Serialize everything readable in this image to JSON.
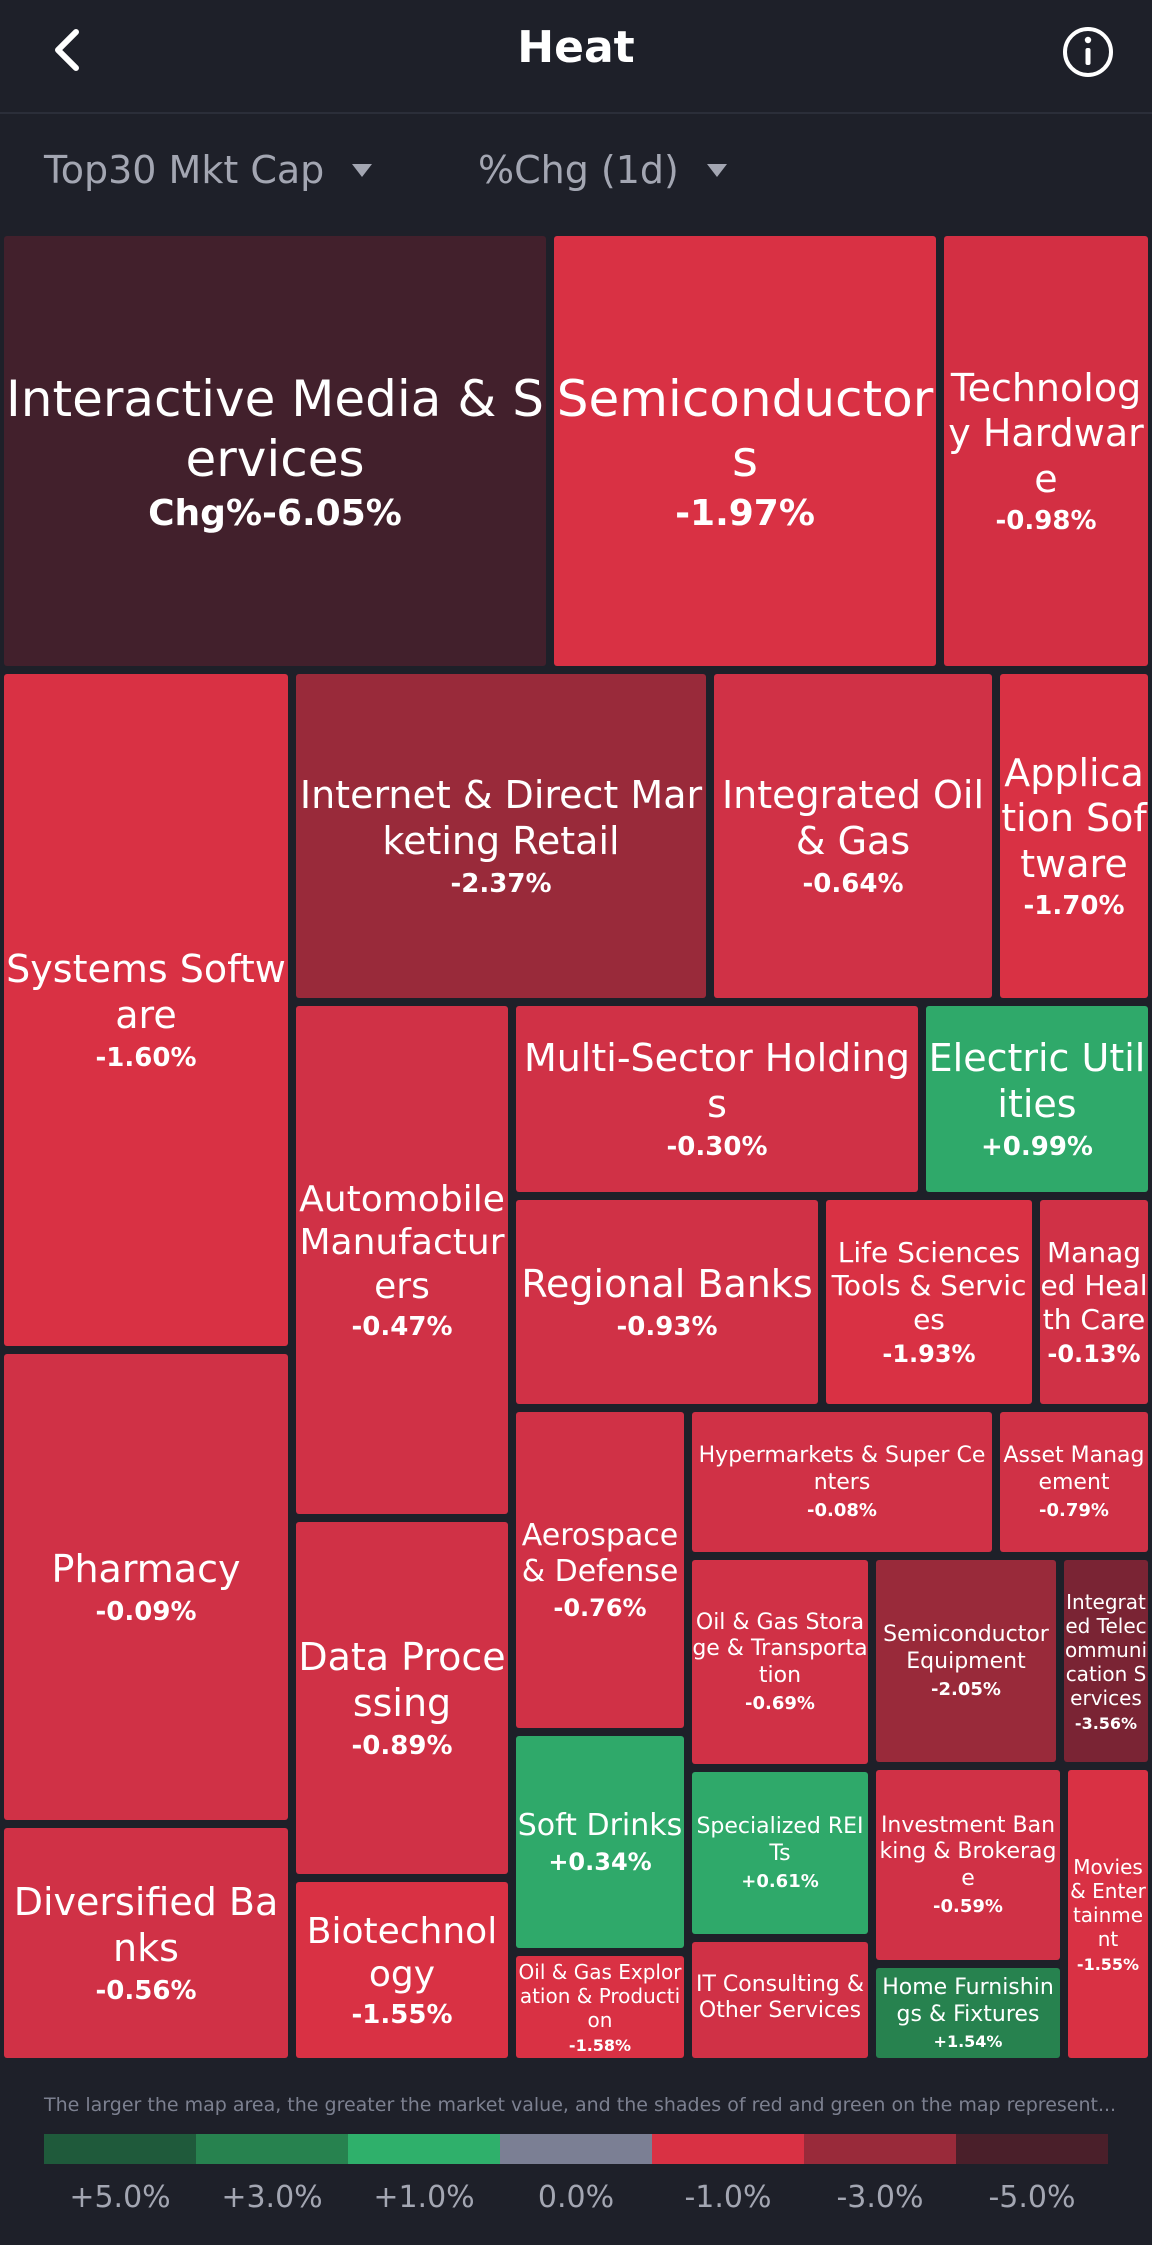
{
  "header": {
    "title": "Heat",
    "back_icon": "chevron-left-icon",
    "info_icon": "info-circle-icon"
  },
  "filters": {
    "scope": "Top30 Mkt Cap",
    "metric": "%Chg (1d)"
  },
  "colors": {
    "background": "#1e2029",
    "strong_red": "#d93144",
    "mid_red": "#992a3a",
    "deep_red": "#42202c",
    "green": "#2fa96a",
    "dark_green": "#27824f"
  },
  "tiles": [
    {
      "name": "Interactive Media & Services",
      "change": "Chg%-6.05%"
    },
    {
      "name": "Semiconductors",
      "change": "-1.97%"
    },
    {
      "name": "Technology Hardware",
      "change": "-0.98%"
    },
    {
      "name": "Systems Software",
      "change": "-1.60%"
    },
    {
      "name": "Internet & Direct Marketing Retail",
      "change": "-2.37%"
    },
    {
      "name": "Integrated Oil & Gas",
      "change": "-0.64%"
    },
    {
      "name": "Application Software",
      "change": "-1.70%"
    },
    {
      "name": "Multi-Sector Holdings",
      "change": "-0.30%"
    },
    {
      "name": "Electric Utilities",
      "change": "+0.99%"
    },
    {
      "name": "Automobile Manufacturers",
      "change": "-0.47%"
    },
    {
      "name": "Regional Banks",
      "change": "-0.93%"
    },
    {
      "name": "Life Sciences Tools & Services",
      "change": "-1.93%"
    },
    {
      "name": "Managed Health Care",
      "change": "-0.13%"
    },
    {
      "name": "Pharmacy",
      "change": "-0.09%"
    },
    {
      "name": "Aerospace & Defense",
      "change": "-0.76%"
    },
    {
      "name": "Hypermarkets & Super Centers",
      "change": "-0.08%"
    },
    {
      "name": "Asset Management",
      "change": "-0.79%"
    },
    {
      "name": "Data Processing",
      "change": "-0.89%"
    },
    {
      "name": "Oil & Gas Storage & Transportation",
      "change": "-0.69%"
    },
    {
      "name": "Semiconductor Equipment",
      "change": "-2.05%"
    },
    {
      "name": "Integrated Telecommunication Services",
      "change": "-3.56%"
    },
    {
      "name": "Soft Drinks",
      "change": "+0.34%"
    },
    {
      "name": "Specialized REITs",
      "change": "+0.61%"
    },
    {
      "name": "Investment Banking & Brokerage",
      "change": "-0.59%"
    },
    {
      "name": "Movies & Entertainment",
      "change": "-1.55%"
    },
    {
      "name": "Diversified Banks",
      "change": "-0.56%"
    },
    {
      "name": "Biotechnology",
      "change": "-1.55%"
    },
    {
      "name": "Oil & Gas Exploration & Production",
      "change": "-1.58%"
    },
    {
      "name": "IT Consulting & Other Services",
      "change": ""
    },
    {
      "name": "Home Furnishings & Fixtures",
      "change": "+1.54%"
    }
  ],
  "legend": {
    "note": "The larger the map area, the greater the market value, and the shades of red and green on the map represent...",
    "colors": [
      "#1f5a3b",
      "#27824f",
      "#2fb06b",
      "#7b7f94",
      "#d93144",
      "#992a3a",
      "#4a1f2a"
    ],
    "labels": [
      "+5.0%",
      "+3.0%",
      "+1.0%",
      "0.0%",
      "-1.0%",
      "-3.0%",
      "-5.0%"
    ]
  }
}
